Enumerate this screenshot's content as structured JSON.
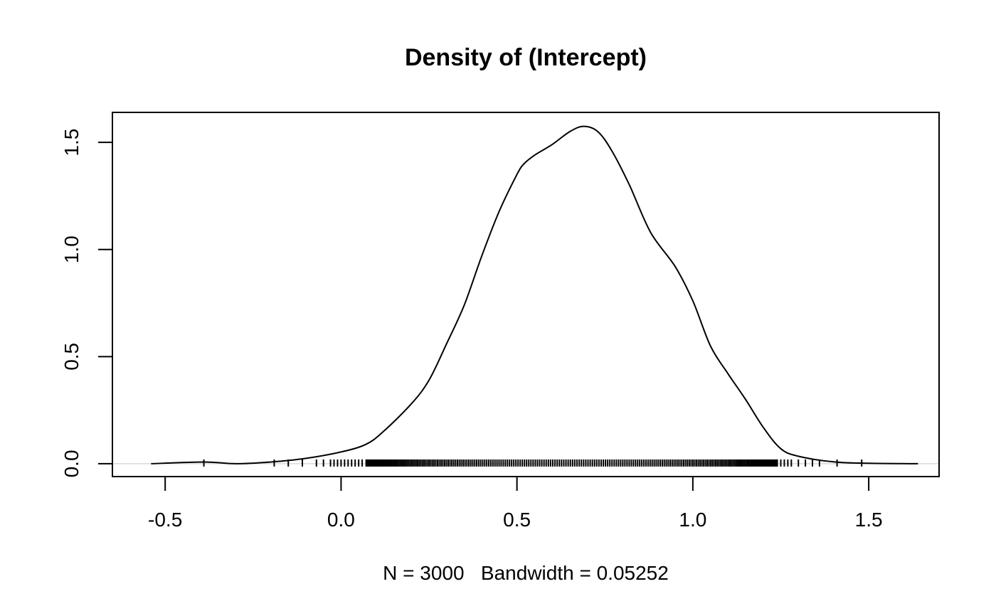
{
  "chart_data": {
    "type": "line",
    "title": "Density of (Intercept)",
    "subtitle": "N = 3000   Bandwidth = 0.05252",
    "xlim": [
      -0.65,
      1.7
    ],
    "ylim": [
      -0.06,
      1.64
    ],
    "x_ticks": [
      -0.5,
      0.0,
      0.5,
      1.0,
      1.5
    ],
    "x_tick_labels": [
      "-0.5",
      "0.0",
      "0.5",
      "1.0",
      "1.5"
    ],
    "y_ticks": [
      0.0,
      0.5,
      1.0,
      1.5
    ],
    "y_tick_labels": [
      "0.0",
      "0.5",
      "1.0",
      "1.5"
    ],
    "zero_line": true,
    "grid": false,
    "density": {
      "x": [
        -0.54,
        -0.39,
        -0.3,
        -0.2,
        -0.1,
        0.0,
        0.07,
        0.12,
        0.2,
        0.25,
        0.3,
        0.35,
        0.4,
        0.45,
        0.5,
        0.52,
        0.55,
        0.6,
        0.65,
        0.69,
        0.73,
        0.77,
        0.82,
        0.88,
        0.95,
        1.0,
        1.05,
        1.1,
        1.15,
        1.2,
        1.25,
        1.3,
        1.4,
        1.5,
        1.64
      ],
      "y": [
        0.0,
        0.008,
        0.0,
        0.008,
        0.025,
        0.055,
        0.09,
        0.15,
        0.28,
        0.39,
        0.56,
        0.74,
        0.97,
        1.18,
        1.35,
        1.4,
        1.44,
        1.49,
        1.55,
        1.575,
        1.55,
        1.46,
        1.3,
        1.08,
        0.92,
        0.76,
        0.55,
        0.42,
        0.3,
        0.17,
        0.07,
        0.035,
        0.009,
        0.002,
        0.0
      ]
    },
    "rug": {
      "x": [
        -0.39,
        -0.19,
        -0.15,
        -0.11,
        -0.07,
        -0.05,
        -0.03,
        -0.02,
        -0.01,
        0.0,
        0.01,
        0.02,
        0.03,
        0.04,
        0.05,
        0.06,
        1.24,
        1.25,
        1.26,
        1.27,
        1.28,
        1.3,
        1.32,
        1.34,
        1.36,
        1.41,
        1.48
      ],
      "dense_range": [
        0.07,
        1.24
      ],
      "dense_count": 240
    }
  }
}
